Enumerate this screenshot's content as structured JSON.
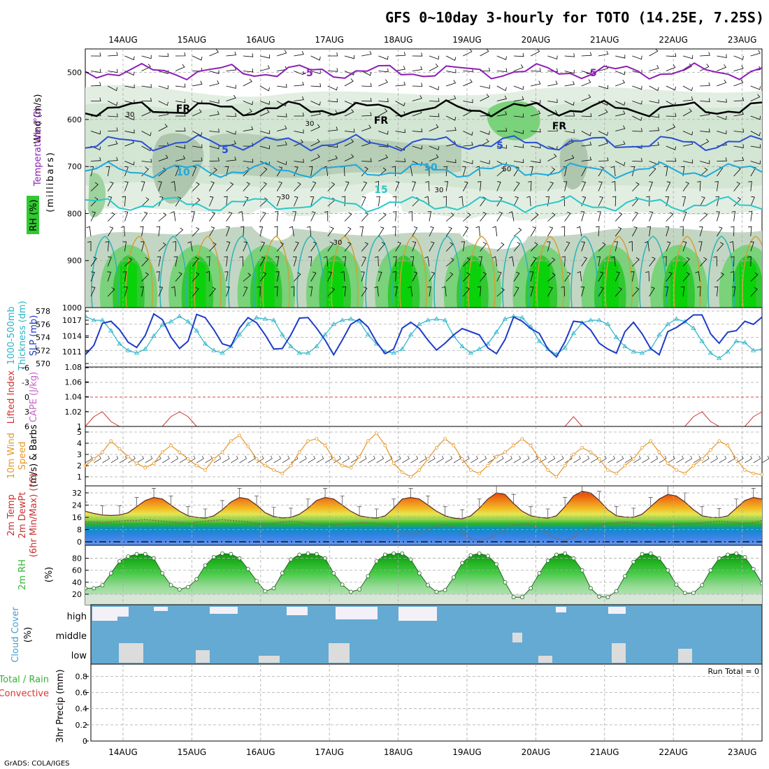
{
  "title": "GFS 0~10day 3-hourly for TOTO (14.25E, 7.25S)",
  "footer": "GrADS: COLA/IGES",
  "colors": {
    "rh_green": "#32c832",
    "temp_purple": "#8c1eb4",
    "temp_blue": "#2850d2",
    "temp_cyan": "#1eaadc",
    "slp": "#1e3cc8",
    "thick": "#28b4c8",
    "wind": "#e69628",
    "cape": "#c84678",
    "cloud": "#64aad2"
  },
  "chart_data": {
    "type": "meteogram",
    "dates": [
      "14AUG",
      "15AUG",
      "16AUG",
      "17AUG",
      "18AUG",
      "19AUG",
      "20AUG",
      "21AUG",
      "22AUG",
      "23AUG"
    ],
    "panels": [
      {
        "id": "upper",
        "ylabel": "(millibars)",
        "legend_parts": [
          "Wind (m/s)",
          "Temperature (°C)",
          "RH (%)"
        ],
        "yticks": [
          "500",
          "600",
          "700",
          "800",
          "900",
          "1000"
        ],
        "ylim": [
          450,
          1000
        ],
        "contour_labels": [
          "-5",
          "-5",
          "FR",
          "FR",
          "FR",
          "5",
          "5",
          "10",
          "10",
          "15",
          "30",
          "30",
          "30",
          "30",
          "30",
          "50"
        ],
        "isotherms": [
          {
            "label": "-5",
            "pressure_mb": 498
          },
          {
            "label": "FR",
            "pressure_mb": 577
          },
          {
            "label": "5",
            "pressure_mb": 650
          },
          {
            "label": "10",
            "pressure_mb": 708
          },
          {
            "label": "15",
            "pressure_mb": 780
          }
        ]
      },
      {
        "id": "slp_thickness",
        "ylabel_left": "Thickness (dm)",
        "ylabel_left2": "1000-500mb",
        "ylabel_right": "SLP (mb)",
        "left_ticks": [
          "578",
          "576",
          "574",
          "572",
          "570"
        ],
        "right_ticks": [
          "1017",
          "1014",
          "1011"
        ],
        "slp_mb": [
          1010.4,
          1012.2,
          1016.4,
          1016.8,
          1015.2,
          1012.8,
          1011.8,
          1014.1,
          1018.2,
          1017.1,
          1013.8,
          1011.6,
          1013.0,
          1018.1,
          1017.5,
          1015.2,
          1012.5,
          1012.0,
          1015.5,
          1017.5,
          1016.5,
          1014.2,
          1011.5,
          1011.6,
          1014.2,
          1017.4,
          1017.5,
          1015.5,
          1013.2,
          1010.4,
          1013.2,
          1016.2,
          1017.2,
          1015.7,
          1012.8,
          1010.6,
          1011.5,
          1015.5,
          1016.6,
          1015.4,
          1013.2,
          1011.3,
          1012.6,
          1014.2,
          1015.4,
          1014.8,
          1014.2,
          1011.7,
          1010.6,
          1013.3,
          1017.6,
          1016.8,
          1015.4,
          1014.5,
          1011.5,
          1010.0,
          1012.9,
          1016.8,
          1016.6,
          1015.1,
          1012.6,
          1011.5,
          1010.7,
          1014.8,
          1016.6,
          1014.4,
          1011.6,
          1010.4,
          1014.8,
          1015.6,
          1016.7,
          1018.0,
          1018.0,
          1014.4,
          1012.6,
          1014.7,
          1015.0,
          1016.8,
          1016.2,
          1017.6
        ],
        "thickness_dm": [
          577.2,
          576.6,
          576.6,
          575.0,
          573.0,
          572.0,
          571.6,
          572.2,
          574.2,
          575.9,
          576.4,
          577.2,
          576.4,
          575.0,
          573.0,
          572.0,
          571.6,
          572.6,
          574.4,
          576.0,
          577.0,
          576.8,
          576.6,
          574.4,
          572.6,
          571.6,
          571.6,
          572.6,
          574.4,
          576.0,
          576.6,
          576.8,
          576.4,
          574.4,
          573.0,
          571.8,
          571.6,
          572.2,
          574.4,
          576.0,
          576.6,
          576.8,
          576.6,
          574.2,
          572.6,
          571.6,
          572.2,
          573.0,
          574.8,
          576.8,
          577.2,
          577.0,
          575.6,
          573.4,
          572.2,
          571.4,
          572.4,
          574.6,
          576.2,
          576.6,
          576.6,
          576.0,
          574.0,
          572.6,
          571.8,
          571.6,
          572.2,
          574.4,
          576.0,
          576.8,
          576.4,
          575.4,
          573.4,
          571.6,
          570.8,
          571.8,
          573.4,
          573.2,
          572.0,
          572.2
        ]
      },
      {
        "id": "li_cape",
        "ylabel_left": "Lifted Index",
        "ylabel_right": "CAPE (J/kg)",
        "left_ticks": [
          "-6",
          "-3",
          "0",
          "3",
          "6"
        ],
        "right_ticks": [
          "1.08",
          "1.06",
          "1.04",
          "1.02",
          "1"
        ],
        "lifted_index": [
          6,
          4,
          3,
          5,
          6,
          6,
          6,
          6,
          6,
          6,
          4,
          3,
          4,
          6,
          6,
          6,
          6,
          6,
          6,
          6,
          6,
          6,
          6,
          6,
          6,
          6,
          6,
          6,
          6,
          6,
          6,
          6,
          6,
          6,
          6,
          6,
          6,
          6,
          6,
          6,
          6,
          6,
          6,
          6,
          6,
          6,
          6,
          6,
          6,
          6,
          6,
          6,
          6,
          6,
          6,
          6,
          6,
          4,
          6,
          6,
          6,
          6,
          6,
          6,
          6,
          6,
          6,
          6,
          6,
          6,
          6,
          4,
          3,
          5,
          6,
          6,
          6,
          6,
          4,
          3
        ]
      },
      {
        "id": "wind10m",
        "ylabel_left": "10m Wind",
        "ylabel_left2": "Speed",
        "ylabel_left3": "(m/s) & Barbs",
        "ticks": [
          "1",
          "2",
          "3",
          "4",
          "5"
        ],
        "speed_ms": [
          2.0,
          2.6,
          3.2,
          4.2,
          3.5,
          2.8,
          2.2,
          1.8,
          2.2,
          3.2,
          3.8,
          3.2,
          2.6,
          2.0,
          1.6,
          2.6,
          3.2,
          4.2,
          4.7,
          3.7,
          2.6,
          2.0,
          1.6,
          1.3,
          2.0,
          3.2,
          4.2,
          4.4,
          3.8,
          2.6,
          2.0,
          1.8,
          2.8,
          4.2,
          4.9,
          3.8,
          2.2,
          1.4,
          1.0,
          1.6,
          2.6,
          3.6,
          4.4,
          3.8,
          2.6,
          1.6,
          1.3,
          2.0,
          2.8,
          3.2,
          3.8,
          4.4,
          3.8,
          2.6,
          1.6,
          1.0,
          2.0,
          3.0,
          3.6,
          3.2,
          2.6,
          1.6,
          1.3,
          2.0,
          2.6,
          3.6,
          4.2,
          3.2,
          2.2,
          1.6,
          1.3,
          2.0,
          2.6,
          3.4,
          4.2,
          3.8,
          2.6,
          1.6,
          1.3,
          1.2
        ]
      },
      {
        "id": "temp2m",
        "ylabel_left": "2m Temp",
        "ylabel_left2": "2m DewPt",
        "ylabel_left3": "(6hr Min/Max) (°C)",
        "ticks": [
          "0",
          "8",
          "16",
          "24",
          "32"
        ],
        "temp_c": [
          20,
          18.5,
          17.5,
          17.2,
          17.5,
          19,
          23,
          27,
          29,
          28,
          24,
          20,
          17,
          16,
          15.5,
          17,
          21,
          26,
          29,
          28,
          24,
          19,
          16.5,
          15.6,
          16,
          18,
          22,
          27,
          29,
          28,
          24,
          20,
          17,
          16,
          15.5,
          17,
          22,
          28,
          29,
          28,
          24,
          20,
          17,
          15.5,
          15,
          17,
          22,
          28,
          32,
          31,
          25,
          20,
          17,
          16,
          15.5,
          17,
          23,
          30,
          33,
          32,
          27,
          21,
          17,
          16.2,
          16,
          18,
          23,
          28,
          31,
          30,
          26,
          21,
          17,
          16,
          15.8,
          17,
          22,
          27,
          29,
          28
        ],
        "dewpt_c": [
          13,
          13,
          12.5,
          13,
          13.5,
          14,
          14,
          14.5,
          14,
          13.5,
          13,
          12.5,
          12,
          13,
          13.5,
          14,
          14.5,
          14,
          13.5,
          13,
          12,
          11.5,
          12,
          13,
          13.5,
          13,
          12,
          11,
          10.5,
          11,
          11.5,
          12,
          12.5,
          12.5,
          12,
          11,
          9,
          6,
          5,
          6,
          8,
          10,
          11,
          10,
          6,
          2,
          1,
          2,
          5,
          8,
          11,
          12,
          11,
          9,
          5,
          2,
          1,
          3,
          7,
          10,
          11,
          12,
          12.5,
          13,
          12.5,
          12,
          11.5,
          10.5,
          11,
          11.5,
          12,
          12,
          12.5,
          13,
          13.5,
          13,
          12.5,
          12,
          12.5,
          14
        ]
      },
      {
        "id": "rh2m",
        "ylabel_left": "2m RH",
        "ylabel_unit": "(%)",
        "ticks": [
          "20",
          "40",
          "60",
          "80"
        ],
        "rh_pct": [
          30,
          30,
          35,
          55,
          75,
          83,
          87,
          87,
          80,
          55,
          35,
          28,
          32,
          45,
          68,
          82,
          88,
          87,
          80,
          62,
          42,
          25,
          30,
          55,
          78,
          86,
          88,
          87,
          80,
          55,
          36,
          24,
          28,
          50,
          75,
          86,
          88,
          88,
          78,
          55,
          35,
          24,
          27,
          48,
          72,
          85,
          88,
          84,
          70,
          40,
          15,
          15,
          30,
          55,
          76,
          86,
          88,
          80,
          60,
          30,
          16,
          15,
          25,
          50,
          74,
          87,
          88,
          80,
          60,
          36,
          22,
          22,
          35,
          60,
          80,
          86,
          88,
          82,
          62,
          38
        ]
      },
      {
        "id": "cloud",
        "ylabel_left": "Cloud Cover",
        "ylabel_unit": "(%)",
        "levels": [
          "high",
          "middle",
          "low"
        ]
      },
      {
        "id": "precip",
        "ylabel_left": "Total / Rain",
        "ylabel_left2": "Convective",
        "ylabel_right": "3hr Precip (mm)",
        "ticks": [
          "0",
          "0.2",
          "0.4",
          "0.6",
          "0.8"
        ],
        "run_total_label": "Run Total = 0",
        "values_mm": [
          0,
          0,
          0,
          0,
          0,
          0,
          0,
          0,
          0,
          0
        ]
      }
    ]
  }
}
